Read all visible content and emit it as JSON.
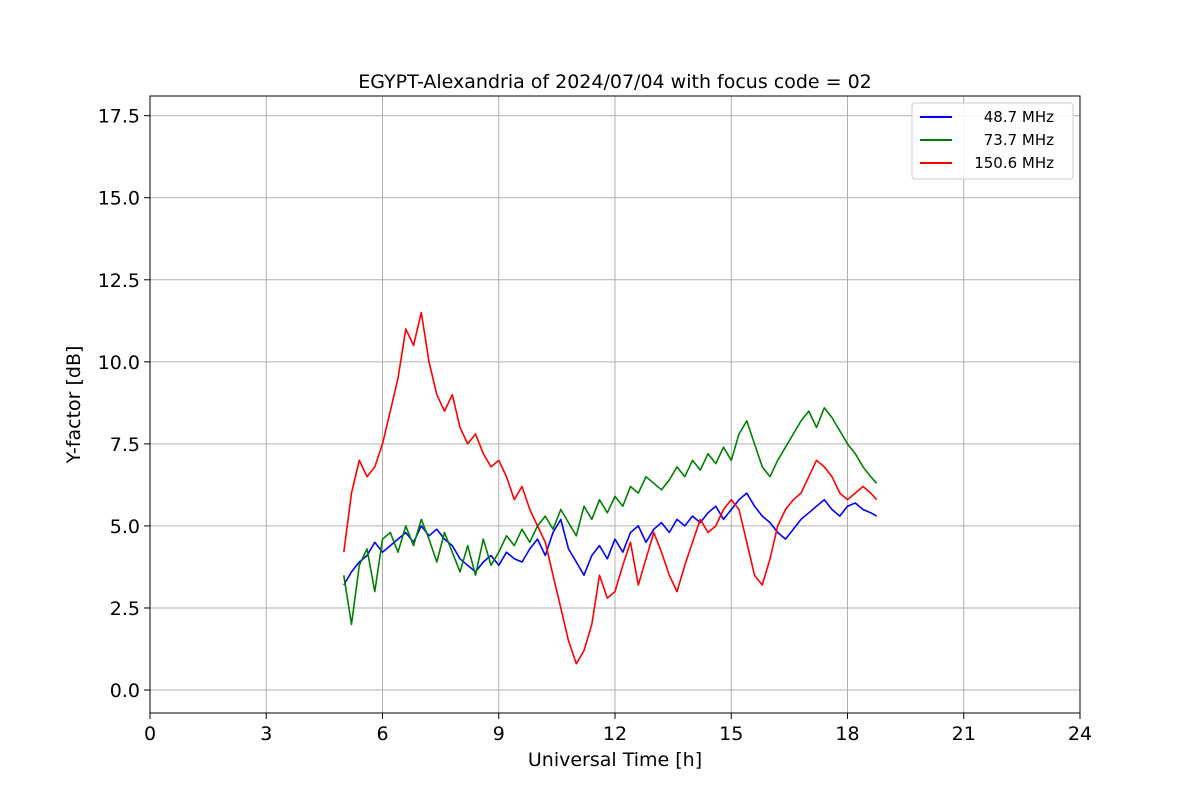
{
  "chart_data": {
    "type": "line",
    "title": "EGYPT-Alexandria of 2024/07/04 with focus code = 02",
    "xlabel": "Universal Time [h]",
    "ylabel": "Y-factor [dB]",
    "xlim": [
      0,
      24
    ],
    "ylim": [
      -0.7,
      18.1
    ],
    "xticks": [
      0,
      3,
      6,
      9,
      12,
      15,
      18,
      21,
      24
    ],
    "xtick_labels": [
      "0",
      "3",
      "6",
      "9",
      "12",
      "15",
      "18",
      "21",
      "24"
    ],
    "yticks": [
      0.0,
      2.5,
      5.0,
      7.5,
      10.0,
      12.5,
      15.0,
      17.5
    ],
    "ytick_labels": [
      "0.0",
      "2.5",
      "5.0",
      "7.5",
      "10.0",
      "12.5",
      "15.0",
      "17.5"
    ],
    "grid": true,
    "legend_position": "upper right",
    "series": [
      {
        "name": "48.7 MHz",
        "color": "#0000ff",
        "x": [
          5.0,
          5.2,
          5.4,
          5.6,
          5.8,
          6.0,
          6.2,
          6.4,
          6.6,
          6.8,
          7.0,
          7.2,
          7.4,
          7.6,
          7.8,
          8.0,
          8.2,
          8.4,
          8.6,
          8.8,
          9.0,
          9.2,
          9.4,
          9.6,
          9.8,
          10.0,
          10.2,
          10.4,
          10.6,
          10.8,
          11.0,
          11.2,
          11.4,
          11.6,
          11.8,
          12.0,
          12.2,
          12.4,
          12.6,
          12.8,
          13.0,
          13.2,
          13.4,
          13.6,
          13.8,
          14.0,
          14.2,
          14.4,
          14.6,
          14.8,
          15.0,
          15.2,
          15.4,
          15.6,
          15.8,
          16.0,
          16.2,
          16.4,
          16.6,
          16.8,
          17.0,
          17.2,
          17.4,
          17.6,
          17.8,
          18.0,
          18.2,
          18.4,
          18.6,
          18.75
        ],
        "y": [
          3.2,
          3.6,
          3.9,
          4.1,
          4.5,
          4.2,
          4.4,
          4.6,
          4.8,
          4.5,
          5.0,
          4.7,
          4.9,
          4.6,
          4.4,
          4.0,
          3.8,
          3.6,
          3.9,
          4.1,
          3.8,
          4.2,
          4.0,
          3.9,
          4.3,
          4.6,
          4.1,
          4.8,
          5.2,
          4.3,
          3.9,
          3.5,
          4.1,
          4.4,
          4.0,
          4.6,
          4.2,
          4.8,
          5.0,
          4.5,
          4.9,
          5.1,
          4.8,
          5.2,
          5.0,
          5.3,
          5.1,
          5.4,
          5.6,
          5.2,
          5.5,
          5.8,
          6.0,
          5.6,
          5.3,
          5.1,
          4.8,
          4.6,
          4.9,
          5.2,
          5.4,
          5.6,
          5.8,
          5.5,
          5.3,
          5.6,
          5.7,
          5.5,
          5.4,
          5.3
        ]
      },
      {
        "name": "73.7 MHz",
        "color": "#008000",
        "x": [
          5.0,
          5.2,
          5.4,
          5.6,
          5.8,
          6.0,
          6.2,
          6.4,
          6.6,
          6.8,
          7.0,
          7.2,
          7.4,
          7.6,
          7.8,
          8.0,
          8.2,
          8.4,
          8.6,
          8.8,
          9.0,
          9.2,
          9.4,
          9.6,
          9.8,
          10.0,
          10.2,
          10.4,
          10.6,
          10.8,
          11.0,
          11.2,
          11.4,
          11.6,
          11.8,
          12.0,
          12.2,
          12.4,
          12.6,
          12.8,
          13.0,
          13.2,
          13.4,
          13.6,
          13.8,
          14.0,
          14.2,
          14.4,
          14.6,
          14.8,
          15.0,
          15.2,
          15.4,
          15.6,
          15.8,
          16.0,
          16.2,
          16.4,
          16.6,
          16.8,
          17.0,
          17.2,
          17.4,
          17.6,
          17.8,
          18.0,
          18.2,
          18.4,
          18.6,
          18.75
        ],
        "y": [
          3.5,
          2.0,
          3.8,
          4.3,
          3.0,
          4.6,
          4.8,
          4.2,
          5.0,
          4.4,
          5.2,
          4.6,
          3.9,
          4.8,
          4.2,
          3.6,
          4.4,
          3.5,
          4.6,
          3.8,
          4.2,
          4.7,
          4.4,
          4.9,
          4.5,
          5.0,
          5.3,
          4.9,
          5.5,
          5.1,
          4.7,
          5.6,
          5.2,
          5.8,
          5.4,
          5.9,
          5.6,
          6.2,
          6.0,
          6.5,
          6.3,
          6.1,
          6.4,
          6.8,
          6.5,
          7.0,
          6.7,
          7.2,
          6.9,
          7.4,
          7.0,
          7.8,
          8.2,
          7.5,
          6.8,
          6.5,
          7.0,
          7.4,
          7.8,
          8.2,
          8.5,
          8.0,
          8.6,
          8.3,
          7.9,
          7.5,
          7.2,
          6.8,
          6.5,
          6.3
        ]
      },
      {
        "name": "150.6 MHz",
        "color": "#ff0000",
        "x": [
          5.0,
          5.2,
          5.4,
          5.6,
          5.8,
          6.0,
          6.2,
          6.4,
          6.6,
          6.8,
          7.0,
          7.2,
          7.4,
          7.6,
          7.8,
          8.0,
          8.2,
          8.4,
          8.6,
          8.8,
          9.0,
          9.2,
          9.4,
          9.6,
          9.8,
          10.0,
          10.2,
          10.4,
          10.6,
          10.8,
          11.0,
          11.2,
          11.4,
          11.6,
          11.8,
          12.0,
          12.2,
          12.4,
          12.6,
          12.8,
          13.0,
          13.2,
          13.4,
          13.6,
          13.8,
          14.0,
          14.2,
          14.4,
          14.6,
          14.8,
          15.0,
          15.2,
          15.4,
          15.6,
          15.8,
          16.0,
          16.2,
          16.4,
          16.6,
          16.8,
          17.0,
          17.2,
          17.4,
          17.6,
          17.8,
          18.0,
          18.2,
          18.4,
          18.6,
          18.75
        ],
        "y": [
          4.2,
          6.0,
          7.0,
          6.5,
          6.8,
          7.5,
          8.5,
          9.5,
          11.0,
          10.5,
          11.5,
          10.0,
          9.0,
          8.5,
          9.0,
          8.0,
          7.5,
          7.8,
          7.2,
          6.8,
          7.0,
          6.5,
          5.8,
          6.2,
          5.5,
          5.0,
          4.5,
          3.5,
          2.5,
          1.5,
          0.8,
          1.2,
          2.0,
          3.5,
          2.8,
          3.0,
          3.8,
          4.5,
          3.2,
          4.0,
          4.8,
          4.2,
          3.5,
          3.0,
          3.8,
          4.5,
          5.2,
          4.8,
          5.0,
          5.5,
          5.8,
          5.5,
          4.5,
          3.5,
          3.2,
          4.0,
          5.0,
          5.5,
          5.8,
          6.0,
          6.5,
          7.0,
          6.8,
          6.5,
          6.0,
          5.8,
          6.0,
          6.2,
          6.0,
          5.8
        ]
      }
    ]
  }
}
